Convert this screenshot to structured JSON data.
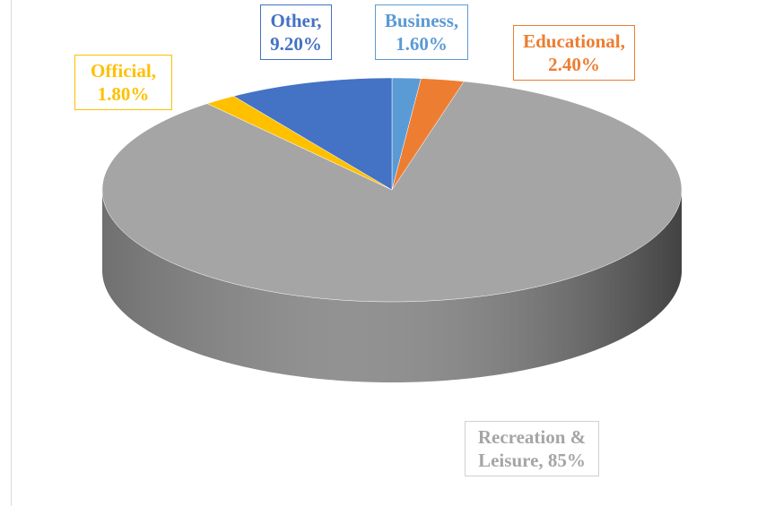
{
  "chart_data": {
    "type": "pie",
    "categories": [
      "Business",
      "Educational",
      "Recreation & Leisure",
      "Official",
      "Other"
    ],
    "values": [
      1.6,
      2.4,
      85,
      1.8,
      9.2
    ],
    "value_labels": [
      "1.60%",
      "2.40%",
      "85%",
      "1.80%",
      "9.20%"
    ],
    "label_separator": ",",
    "colors": [
      "#5b9bd5",
      "#ed7d31",
      "#a5a5a5",
      "#ffc000",
      "#4472c4"
    ],
    "start_angle": "top",
    "direction": "clockwise",
    "three_d": true
  }
}
